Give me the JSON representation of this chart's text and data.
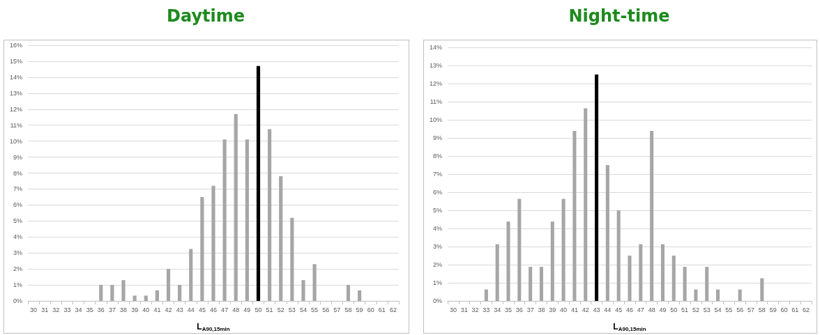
{
  "chart_data": [
    {
      "type": "bar",
      "title": "Daytime",
      "xlabel": "L$_{A90,15min}$",
      "categories": [
        "30",
        "31",
        "32",
        "33",
        "34",
        "35",
        "36",
        "37",
        "38",
        "39",
        "40",
        "41",
        "42",
        "43",
        "44",
        "45",
        "46",
        "47",
        "48",
        "49",
        "50",
        "51",
        "52",
        "53",
        "54",
        "55",
        "56",
        "57",
        "58",
        "59",
        "60",
        "61",
        "62"
      ],
      "values": [
        0,
        0,
        0,
        0,
        0,
        0,
        1.0,
        1.0,
        1.3,
        0.33,
        0.33,
        0.66,
        2.0,
        1.0,
        3.25,
        6.5,
        7.2,
        10.1,
        11.7,
        10.1,
        14.7,
        10.75,
        7.8,
        5.2,
        1.3,
        2.3,
        0,
        0,
        1.0,
        0.66,
        0,
        0,
        0
      ],
      "colors": [
        "#a6a6a6",
        "#a6a6a6",
        "#a6a6a6",
        "#a6a6a6",
        "#a6a6a6",
        "#a6a6a6",
        "#a6a6a6",
        "#a6a6a6",
        "#a6a6a6",
        "#a6a6a6",
        "#a6a6a6",
        "#a6a6a6",
        "#a6a6a6",
        "#a6a6a6",
        "#a6a6a6",
        "#a6a6a6",
        "#a6a6a6",
        "#a6a6a6",
        "#a6a6a6",
        "#a6a6a6",
        "#000000",
        "#a6a6a6",
        "#a6a6a6",
        "#a6a6a6",
        "#a6a6a6",
        "#a6a6a6",
        "#a6a6a6",
        "#a6a6a6",
        "#a6a6a6",
        "#a6a6a6",
        "#a6a6a6",
        "#a6a6a6",
        "#a6a6a6"
      ],
      "ylim": [
        0,
        16
      ],
      "yticks": [
        {
          "value": 0,
          "label": "0%"
        },
        {
          "value": 1,
          "label": "1%"
        },
        {
          "value": 2,
          "label": "2%"
        },
        {
          "value": 3,
          "label": "3%"
        },
        {
          "value": 4,
          "label": "4%"
        },
        {
          "value": 5,
          "label": "5%"
        },
        {
          "value": 6,
          "label": "6%"
        },
        {
          "value": 7,
          "label": "7%"
        },
        {
          "value": 8,
          "label": "8%"
        },
        {
          "value": 9,
          "label": "9%"
        },
        {
          "value": 10,
          "label": "10%"
        },
        {
          "value": 11,
          "label": "11%"
        },
        {
          "value": 12,
          "label": "12%"
        },
        {
          "value": 13,
          "label": "13%"
        },
        {
          "value": 14,
          "label": "14%"
        },
        {
          "value": 15,
          "label": "15%"
        },
        {
          "value": 16,
          "label": "16%"
        }
      ],
      "grid": "y"
    },
    {
      "type": "bar",
      "title": "Night-time",
      "xlabel": "L$_{A90,15min}$",
      "categories": [
        "30",
        "31",
        "32",
        "33",
        "34",
        "35",
        "36",
        "37",
        "38",
        "39",
        "40",
        "41",
        "42",
        "43",
        "44",
        "45",
        "46",
        "47",
        "48",
        "49",
        "50",
        "51",
        "52",
        "53",
        "54",
        "55",
        "56",
        "57",
        "58",
        "59",
        "60",
        "61",
        "62"
      ],
      "values": [
        0,
        0,
        0,
        0.63,
        3.13,
        4.38,
        5.63,
        1.88,
        1.88,
        4.38,
        5.63,
        9.38,
        10.63,
        12.5,
        7.5,
        5.0,
        2.5,
        3.13,
        9.38,
        3.13,
        2.5,
        1.88,
        0.63,
        1.88,
        0.63,
        0,
        0.63,
        0,
        1.25,
        0,
        0,
        0,
        0
      ],
      "colors": [
        "#a6a6a6",
        "#a6a6a6",
        "#a6a6a6",
        "#a6a6a6",
        "#a6a6a6",
        "#a6a6a6",
        "#a6a6a6",
        "#a6a6a6",
        "#a6a6a6",
        "#a6a6a6",
        "#a6a6a6",
        "#a6a6a6",
        "#a6a6a6",
        "#000000",
        "#a6a6a6",
        "#a6a6a6",
        "#a6a6a6",
        "#a6a6a6",
        "#a6a6a6",
        "#a6a6a6",
        "#a6a6a6",
        "#a6a6a6",
        "#a6a6a6",
        "#a6a6a6",
        "#a6a6a6",
        "#a6a6a6",
        "#a6a6a6",
        "#a6a6a6",
        "#a6a6a6",
        "#a6a6a6",
        "#a6a6a6",
        "#a6a6a6",
        "#a6a6a6"
      ],
      "ylim": [
        0,
        14
      ],
      "yticks": [
        {
          "value": 0,
          "label": "0%"
        },
        {
          "value": 1,
          "label": "1%"
        },
        {
          "value": 2,
          "label": "2%"
        },
        {
          "value": 3,
          "label": "3%"
        },
        {
          "value": 4,
          "label": "4%"
        },
        {
          "value": 5,
          "label": "5%"
        },
        {
          "value": 6,
          "label": "6%"
        },
        {
          "value": 7,
          "label": "7%"
        },
        {
          "value": 8,
          "label": "8%"
        },
        {
          "value": 9,
          "label": "9%"
        },
        {
          "value": 10,
          "label": "10%"
        },
        {
          "value": 11,
          "label": "11%"
        },
        {
          "value": 12,
          "label": "12%"
        },
        {
          "value": 13,
          "label": "13%"
        },
        {
          "value": 14,
          "label": "14%"
        }
      ],
      "grid": "y"
    }
  ]
}
